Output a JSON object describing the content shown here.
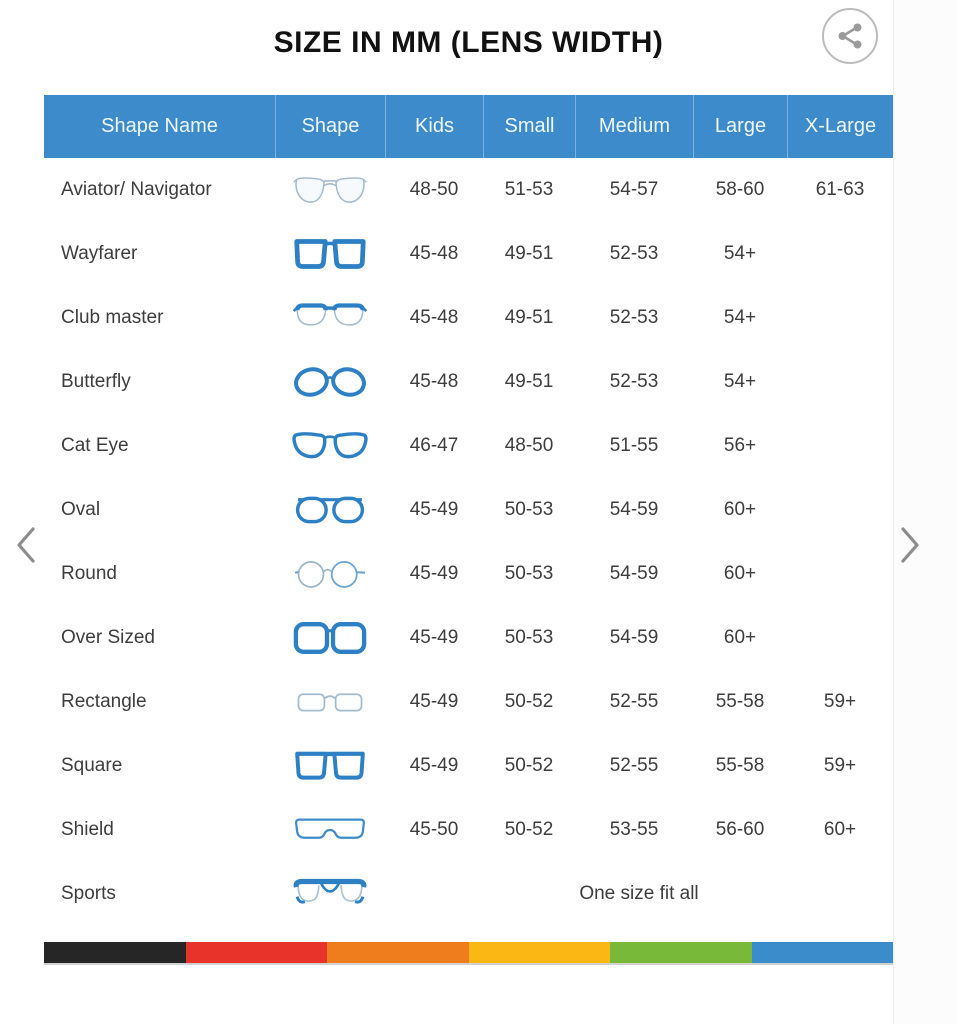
{
  "page_title": "SIZE IN MM (LENS WIDTH)",
  "share_button": {
    "icon": "share-icon"
  },
  "carousel": {
    "prev_icon": "chevron-left-icon",
    "next_icon": "chevron-right-icon"
  },
  "chart_data": {
    "type": "table",
    "title": "SIZE IN MM (LENS WIDTH)",
    "columns": [
      "Shape Name",
      "Shape",
      "Kids",
      "Small",
      "Medium",
      "Large",
      "X-Large"
    ],
    "rows": [
      {
        "name": "Aviator/ Navigator",
        "icon": "aviator-glasses-icon",
        "values": [
          "48-50",
          "51-53",
          "54-57",
          "58-60",
          "61-63"
        ]
      },
      {
        "name": "Wayfarer",
        "icon": "wayfarer-glasses-icon",
        "values": [
          "45-48",
          "49-51",
          "52-53",
          "54+",
          ""
        ]
      },
      {
        "name": "Club master",
        "icon": "clubmaster-glasses-icon",
        "values": [
          "45-48",
          "49-51",
          "52-53",
          "54+",
          ""
        ]
      },
      {
        "name": "Butterfly",
        "icon": "butterfly-glasses-icon",
        "values": [
          "45-48",
          "49-51",
          "52-53",
          "54+",
          ""
        ]
      },
      {
        "name": "Cat Eye",
        "icon": "cateye-glasses-icon",
        "values": [
          "46-47",
          "48-50",
          "51-55",
          "56+",
          ""
        ]
      },
      {
        "name": "Oval",
        "icon": "oval-glasses-icon",
        "values": [
          "45-49",
          "50-53",
          "54-59",
          "60+",
          ""
        ]
      },
      {
        "name": "Round",
        "icon": "round-glasses-icon",
        "values": [
          "45-49",
          "50-53",
          "54-59",
          "60+",
          ""
        ]
      },
      {
        "name": "Over Sized",
        "icon": "oversized-glasses-icon",
        "values": [
          "45-49",
          "50-53",
          "54-59",
          "60+",
          ""
        ]
      },
      {
        "name": "Rectangle",
        "icon": "rectangle-glasses-icon",
        "values": [
          "45-49",
          "50-52",
          "52-55",
          "55-58",
          "59+"
        ]
      },
      {
        "name": "Square",
        "icon": "square-glasses-icon",
        "values": [
          "45-49",
          "50-52",
          "52-55",
          "55-58",
          "59+"
        ]
      },
      {
        "name": "Shield",
        "icon": "shield-glasses-icon",
        "values": [
          "45-50",
          "50-52",
          "53-55",
          "56-60",
          "60+"
        ]
      },
      {
        "name": "Sports",
        "icon": "sports-glasses-icon",
        "one_size_label": "One size fit all"
      }
    ]
  },
  "footer_stripe_colors": [
    "#262626",
    "#e8332a",
    "#ef7d1d",
    "#fbb713",
    "#79b93a",
    "#3a8ccb"
  ],
  "theme": {
    "header_bg": "#3d8bca",
    "header_divider": "#7fb0dc",
    "header_text": "#eef7fd",
    "body_text": "#3d3d3d",
    "frame_blue": "#2e80c4",
    "thin_outline": "#a3bccd",
    "chevron_gray": "#8c8c8c",
    "share_gray": "#9b9b9b"
  }
}
